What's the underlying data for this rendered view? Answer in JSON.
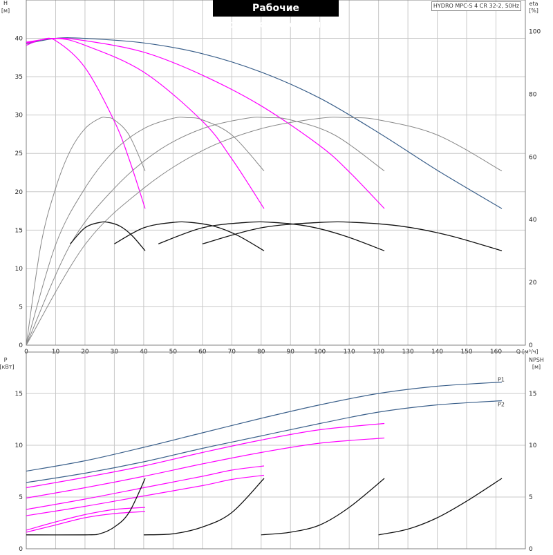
{
  "header": {
    "title": "Рабочие характеристики",
    "model": "HYDRO MPC-S 4 CR 32-2, 50Hz"
  },
  "colors": {
    "grid": "#c8c8c8",
    "frame": "#808080",
    "blue": "#3a5f8a",
    "magenta": "#ff00ff",
    "black": "#111111",
    "gray": "#888888"
  },
  "chart_data": [
    {
      "type": "line",
      "panel": "top",
      "axes": {
        "x": {
          "label": "Q [м³/ч]",
          "lim": [
            0,
            170
          ],
          "ticks": [
            0,
            10,
            20,
            30,
            40,
            50,
            60,
            70,
            80,
            90,
            100,
            110,
            120,
            130,
            140,
            150,
            160
          ]
        },
        "y_left": {
          "label": "H",
          "unit": "[м]",
          "lim": [
            0,
            45
          ],
          "ticks": [
            0,
            5,
            10,
            15,
            20,
            25,
            30,
            35,
            40
          ]
        },
        "y_right": {
          "label": "eta",
          "unit": "[%]",
          "lim": [
            0,
            110
          ],
          "ticks": [
            0,
            20,
            40,
            60,
            80,
            100
          ]
        }
      },
      "grid": true,
      "series": [
        {
          "color": "blue",
          "axis": "left",
          "points": [
            [
              0,
              39.3
            ],
            [
              10,
              40
            ],
            [
              20,
              40
            ],
            [
              40,
              39.4
            ],
            [
              60,
              38
            ],
            [
              80,
              35.6
            ],
            [
              100,
              32.2
            ],
            [
              120,
              27.7
            ],
            [
              140,
              22.8
            ],
            [
              162,
              17.8
            ]
          ]
        },
        {
          "color": "magenta",
          "axis": "left",
          "points": [
            [
              0,
              39.5
            ],
            [
              10,
              40
            ],
            [
              20,
              39.7
            ],
            [
              40,
              38.2
            ],
            [
              60,
              35.2
            ],
            [
              80,
              31.2
            ],
            [
              100,
              26
            ],
            [
              110,
              22.6
            ],
            [
              122,
              17.8
            ]
          ]
        },
        {
          "color": "magenta",
          "axis": "left",
          "points": [
            [
              0,
              39.4
            ],
            [
              10,
              40
            ],
            [
              20,
              39.1
            ],
            [
              40,
              35.6
            ],
            [
              60,
              29.2
            ],
            [
              70,
              24.3
            ],
            [
              81,
              17.8
            ]
          ]
        },
        {
          "color": "magenta",
          "axis": "left",
          "points": [
            [
              0,
              39.1
            ],
            [
              5,
              39.8
            ],
            [
              10,
              39.7
            ],
            [
              20,
              36.2
            ],
            [
              30,
              29.2
            ],
            [
              35,
              24.3
            ],
            [
              40.5,
              17.8
            ]
          ]
        },
        {
          "color": "gray",
          "axis": "right",
          "points": [
            [
              0,
              0
            ],
            [
              5,
              32
            ],
            [
              10,
              50
            ],
            [
              15,
              62
            ],
            [
              20,
              69
            ],
            [
              25,
              72.3
            ],
            [
              27.5,
              72.5
            ],
            [
              30,
              71.8
            ],
            [
              35,
              67
            ],
            [
              40.5,
              55.5
            ]
          ]
        },
        {
          "color": "gray",
          "axis": "right",
          "points": [
            [
              0,
              0
            ],
            [
              10,
              32
            ],
            [
              20,
              50
            ],
            [
              30,
              62
            ],
            [
              40,
              69
            ],
            [
              50,
              72.3
            ],
            [
              55,
              72.5
            ],
            [
              60,
              71.8
            ],
            [
              70,
              67
            ],
            [
              81,
              55.5
            ]
          ]
        },
        {
          "color": "gray",
          "axis": "right",
          "points": [
            [
              0,
              0
            ],
            [
              15,
              32
            ],
            [
              30,
              50
            ],
            [
              45,
              62
            ],
            [
              60,
              69
            ],
            [
              75,
              72.3
            ],
            [
              82.5,
              72.5
            ],
            [
              90,
              71.8
            ],
            [
              105,
              67
            ],
            [
              122,
              55.5
            ]
          ]
        },
        {
          "color": "gray",
          "axis": "right",
          "points": [
            [
              0,
              0
            ],
            [
              20,
              32
            ],
            [
              40,
              50
            ],
            [
              60,
              62
            ],
            [
              80,
              69
            ],
            [
              100,
              72.3
            ],
            [
              110,
              72.5
            ],
            [
              120,
              71.8
            ],
            [
              140,
              67
            ],
            [
              162,
              55.5
            ]
          ]
        },
        {
          "color": "black",
          "axis": "left",
          "points": [
            [
              15,
              13.2
            ],
            [
              20,
              15.3
            ],
            [
              25,
              16
            ],
            [
              28,
              16
            ],
            [
              32,
              15.5
            ],
            [
              36,
              14.3
            ],
            [
              40.5,
              12.3
            ]
          ]
        },
        {
          "color": "black",
          "axis": "left",
          "points": [
            [
              30,
              13.2
            ],
            [
              40,
              15.3
            ],
            [
              50,
              16
            ],
            [
              56,
              16
            ],
            [
              64,
              15.5
            ],
            [
              72,
              14.3
            ],
            [
              81,
              12.3
            ]
          ]
        },
        {
          "color": "black",
          "axis": "left",
          "points": [
            [
              45,
              13.2
            ],
            [
              60,
              15.3
            ],
            [
              75,
              16
            ],
            [
              84,
              16
            ],
            [
              96,
              15.5
            ],
            [
              108,
              14.3
            ],
            [
              122,
              12.3
            ]
          ]
        },
        {
          "color": "black",
          "axis": "left",
          "points": [
            [
              60,
              13.2
            ],
            [
              80,
              15.3
            ],
            [
              100,
              16
            ],
            [
              112,
              16
            ],
            [
              128,
              15.5
            ],
            [
              144,
              14.3
            ],
            [
              162,
              12.3
            ]
          ]
        }
      ]
    },
    {
      "type": "line",
      "panel": "bottom",
      "axes": {
        "x": {
          "lim": [
            0,
            170
          ]
        },
        "y_left": {
          "label": "P",
          "unit": "[кВт]",
          "lim": [
            0,
            19
          ],
          "ticks": [
            0,
            5,
            10,
            15
          ]
        },
        "y_right": {
          "label": "NPSH",
          "unit": "[м]",
          "lim": [
            0,
            19
          ],
          "ticks": [
            0,
            5,
            10,
            15
          ]
        }
      },
      "grid": true,
      "series": [
        {
          "name": "P1",
          "color": "blue",
          "axis": "left",
          "points": [
            [
              0,
              7.5
            ],
            [
              20,
              8.5
            ],
            [
              40,
              9.8
            ],
            [
              60,
              11.2
            ],
            [
              80,
              12.6
            ],
            [
              100,
              13.9
            ],
            [
              120,
              15
            ],
            [
              140,
              15.7
            ],
            [
              162,
              16.1
            ]
          ]
        },
        {
          "name": "P2",
          "color": "blue",
          "axis": "left",
          "points": [
            [
              0,
              6.4
            ],
            [
              20,
              7.3
            ],
            [
              40,
              8.4
            ],
            [
              60,
              9.7
            ],
            [
              80,
              10.9
            ],
            [
              100,
              12.1
            ],
            [
              120,
              13.2
            ],
            [
              140,
              13.9
            ],
            [
              162,
              14.3
            ]
          ]
        },
        {
          "color": "magenta",
          "axis": "left",
          "points": [
            [
              0,
              5.9
            ],
            [
              20,
              6.9
            ],
            [
              40,
              8
            ],
            [
              60,
              9.3
            ],
            [
              80,
              10.5
            ],
            [
              100,
              11.5
            ],
            [
              122,
              12.1
            ]
          ]
        },
        {
          "color": "magenta",
          "axis": "left",
          "points": [
            [
              0,
              4.9
            ],
            [
              20,
              5.9
            ],
            [
              40,
              7
            ],
            [
              60,
              8.2
            ],
            [
              80,
              9.3
            ],
            [
              100,
              10.2
            ],
            [
              122,
              10.7
            ]
          ]
        },
        {
          "color": "magenta",
          "axis": "left",
          "points": [
            [
              0,
              3.8
            ],
            [
              20,
              4.8
            ],
            [
              40,
              5.9
            ],
            [
              60,
              7
            ],
            [
              70,
              7.6
            ],
            [
              81,
              8
            ]
          ]
        },
        {
          "color": "magenta",
          "axis": "left",
          "points": [
            [
              0,
              3.2
            ],
            [
              20,
              4.1
            ],
            [
              40,
              5.1
            ],
            [
              60,
              6.1
            ],
            [
              70,
              6.7
            ],
            [
              81,
              7.1
            ]
          ]
        },
        {
          "color": "magenta",
          "axis": "left",
          "points": [
            [
              0,
              1.8
            ],
            [
              10,
              2.6
            ],
            [
              20,
              3.3
            ],
            [
              30,
              3.8
            ],
            [
              40.5,
              4
            ]
          ]
        },
        {
          "color": "magenta",
          "axis": "left",
          "points": [
            [
              0,
              1.6
            ],
            [
              10,
              2.3
            ],
            [
              20,
              3
            ],
            [
              30,
              3.4
            ],
            [
              40.5,
              3.6
            ]
          ]
        },
        {
          "color": "black",
          "axis": "right",
          "points": [
            [
              0,
              1.35
            ],
            [
              20,
              1.35
            ],
            [
              25,
              1.45
            ],
            [
              30,
              2.1
            ],
            [
              35,
              3.5
            ],
            [
              40.5,
              6.8
            ]
          ]
        },
        {
          "color": "black",
          "axis": "right",
          "points": [
            [
              40,
              1.35
            ],
            [
              50,
              1.45
            ],
            [
              60,
              2.1
            ],
            [
              70,
              3.5
            ],
            [
              81,
              6.8
            ]
          ]
        },
        {
          "color": "black",
          "axis": "right",
          "points": [
            [
              80,
              1.35
            ],
            [
              90,
              1.6
            ],
            [
              100,
              2.3
            ],
            [
              110,
              4
            ],
            [
              122,
              6.8
            ]
          ]
        },
        {
          "color": "black",
          "axis": "right",
          "points": [
            [
              120,
              1.35
            ],
            [
              130,
              1.9
            ],
            [
              140,
              3
            ],
            [
              150,
              4.6
            ],
            [
              162,
              6.8
            ]
          ]
        }
      ]
    }
  ]
}
